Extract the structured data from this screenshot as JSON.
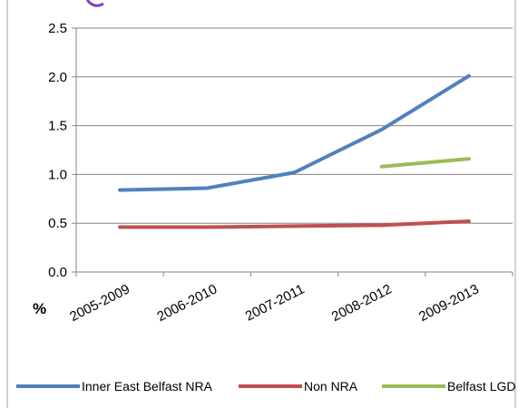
{
  "chart_data": {
    "type": "line",
    "title": "",
    "xlabel": "",
    "ylabel": "%",
    "categories": [
      "2005-2009",
      "2006-2010",
      "2007-2011",
      "2008-2012",
      "2009-2013"
    ],
    "ylim": [
      0,
      2.5
    ],
    "yticks": [
      "0.0",
      "0.5",
      "1.0",
      "1.5",
      "2.0",
      "2.5"
    ],
    "grid": true,
    "legend": "bottom",
    "series": [
      {
        "name": "Inner East Belfast NRA",
        "color": "#4f81bd",
        "values": [
          0.84,
          0.86,
          1.02,
          1.46,
          2.01
        ]
      },
      {
        "name": "Non NRA",
        "color": "#c0504d",
        "values": [
          0.46,
          0.46,
          0.47,
          0.48,
          0.52
        ]
      },
      {
        "name": "Belfast LGD",
        "color": "#9bbb59",
        "values": [
          null,
          null,
          null,
          1.08,
          1.16
        ]
      }
    ]
  }
}
